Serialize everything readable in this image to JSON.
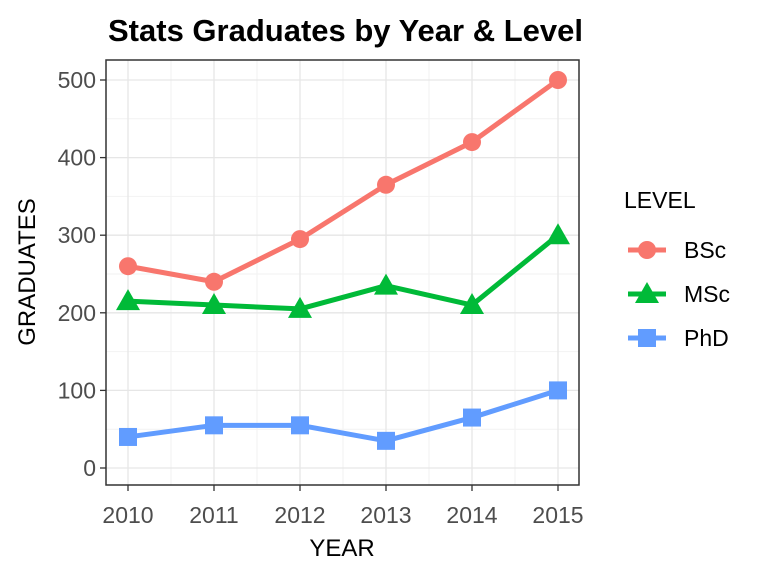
{
  "chart_data": {
    "type": "line",
    "title": "Stats Graduates by Year & Level",
    "xlabel": "YEAR",
    "ylabel": "GRADUATES",
    "x": [
      2010,
      2011,
      2012,
      2013,
      2014,
      2015
    ],
    "x_tick_labels": [
      "2010",
      "2011",
      "2012",
      "2013",
      "2014",
      "2015"
    ],
    "y_ticks": [
      0,
      100,
      200,
      300,
      400,
      500
    ],
    "y_tick_labels": [
      "0",
      "100",
      "200",
      "300",
      "400",
      "500"
    ],
    "xlim": [
      2010,
      2015
    ],
    "ylim": [
      0,
      500
    ],
    "grid": true,
    "legend_title": "LEVEL",
    "legend_position": "right",
    "series": [
      {
        "name": "BSc",
        "marker": "circle",
        "color": "#F8766D",
        "values": [
          260,
          240,
          295,
          365,
          420,
          500
        ]
      },
      {
        "name": "MSc",
        "marker": "triangle",
        "color": "#00BA38",
        "values": [
          215,
          210,
          205,
          235,
          210,
          300
        ]
      },
      {
        "name": "PhD",
        "marker": "square",
        "color": "#619CFF",
        "values": [
          40,
          55,
          55,
          35,
          65,
          100
        ]
      }
    ]
  }
}
